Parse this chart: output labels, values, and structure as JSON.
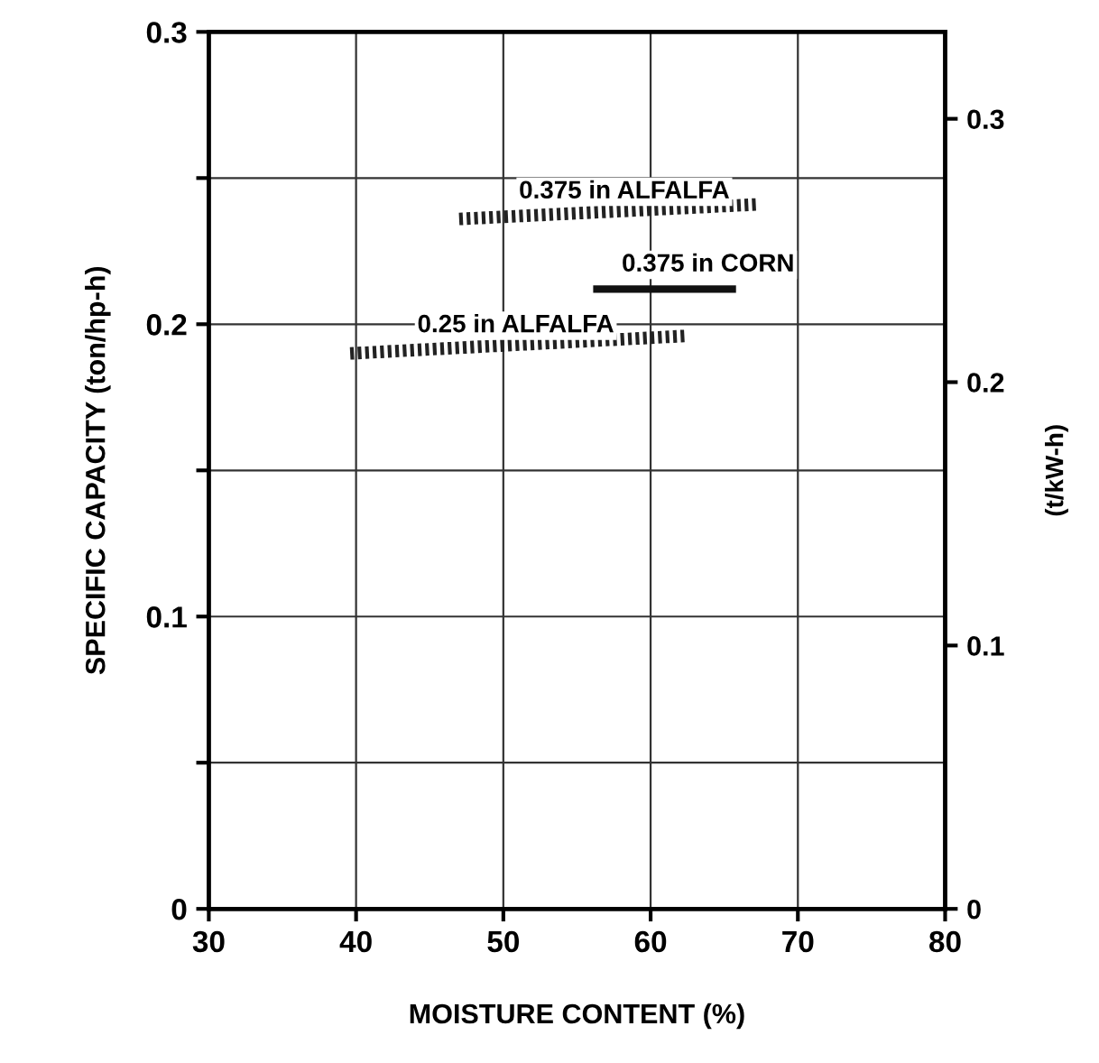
{
  "chart_data": {
    "type": "line",
    "xlabel": "MOISTURE CONTENT (%)",
    "ylabel": "SPECIFIC CAPACITY (ton/hp-h)",
    "y2label": "(t/kW-h)",
    "series": [
      {
        "name": "0.375 in ALFALFA",
        "color": "#222222",
        "x": [
          47.0,
          67.3
        ],
        "values": [
          0.236,
          0.241
        ],
        "line_style": "dotted"
      },
      {
        "name": "0.375 in CORN",
        "color": "#111111",
        "x": [
          56.1,
          65.8
        ],
        "values": [
          0.212,
          0.212
        ],
        "line_style": "solid"
      },
      {
        "name": "0.25 in ALFALFA",
        "color": "#222222",
        "x": [
          39.6,
          62.4
        ],
        "values": [
          0.19,
          0.196
        ],
        "line_style": "dotted"
      }
    ],
    "xlim": [
      30,
      80
    ],
    "xticks": [
      30,
      40,
      50,
      60,
      70,
      80
    ],
    "ylim": [
      0,
      0.3
    ],
    "yticks": [
      0,
      {
        "value": 0.05,
        "label": null
      },
      0.1,
      {
        "value": 0.15,
        "label": null
      },
      0.2,
      {
        "value": 0.25,
        "label": null
      },
      0.3
    ],
    "y2lim": [
      0,
      0.333
    ],
    "y2ticks": [
      0,
      0.1,
      0.2,
      0.3
    ],
    "grid": true,
    "marker": "none"
  }
}
